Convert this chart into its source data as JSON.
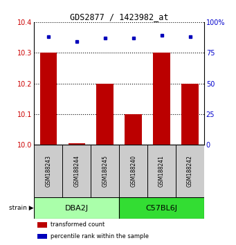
{
  "title": "GDS2877 / 1423982_at",
  "samples": [
    "GSM188243",
    "GSM188244",
    "GSM188245",
    "GSM188240",
    "GSM188241",
    "GSM188242"
  ],
  "bar_values": [
    10.3,
    10.005,
    10.2,
    10.1,
    10.3,
    10.2
  ],
  "percentile_values": [
    88,
    84,
    87,
    87,
    89,
    88
  ],
  "ylim_left": [
    10.0,
    10.4
  ],
  "ylim_right": [
    0,
    100
  ],
  "yticks_left": [
    10.0,
    10.1,
    10.2,
    10.3,
    10.4
  ],
  "yticks_right": [
    0,
    25,
    50,
    75,
    100
  ],
  "bar_color": "#bb0000",
  "dot_color": "#0000bb",
  "group1_label": "DBA2J",
  "group2_label": "C57BL6J",
  "group1_color": "#aaffaa",
  "group2_color": "#33dd33",
  "group1_samples": [
    0,
    1,
    2
  ],
  "group2_samples": [
    3,
    4,
    5
  ],
  "strain_label": "strain",
  "legend_items": [
    {
      "color": "#bb0000",
      "label": "transformed count"
    },
    {
      "color": "#0000bb",
      "label": "percentile rank within the sample"
    }
  ],
  "background_color": "#ffffff",
  "sample_box_color": "#cccccc"
}
